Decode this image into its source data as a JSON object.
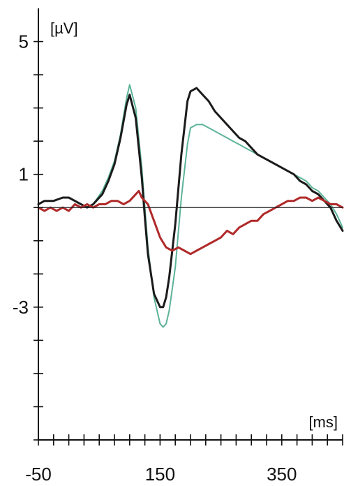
{
  "chart_data": {
    "type": "line",
    "xlabel": "[ms]",
    "ylabel": "[µV]",
    "xlim": [
      -50,
      450
    ],
    "ylim": [
      -7,
      6
    ],
    "x_tick_labels": [
      {
        "value": -50,
        "label": "-50"
      },
      {
        "value": 150,
        "label": "150"
      },
      {
        "value": 350,
        "label": "350"
      }
    ],
    "x_minor_ticks": [
      -50,
      -25,
      0,
      25,
      50,
      75,
      100,
      125,
      150,
      175,
      200,
      225,
      250,
      275,
      300,
      325,
      350,
      375,
      400,
      425,
      450
    ],
    "y_tick_labels": [
      {
        "value": 5,
        "label": "5"
      },
      {
        "value": 1,
        "label": "1"
      },
      {
        "value": -3,
        "label": "-3"
      }
    ],
    "y_minor_ticks": [
      -7,
      -6,
      -5,
      -4,
      -3,
      -2,
      -1,
      0,
      1,
      2,
      3,
      4,
      5
    ],
    "zero_line": 0,
    "series": [
      {
        "color": "#5db39a",
        "width": 2,
        "x": [
          -50,
          -40,
          -25,
          -10,
          0,
          10,
          20,
          30,
          40,
          55,
          65,
          75,
          85,
          95,
          100,
          110,
          120,
          125,
          130,
          140,
          150,
          155,
          160,
          165,
          175,
          185,
          195,
          200,
          210,
          220,
          230,
          240,
          250,
          260,
          270,
          280,
          290,
          300,
          310,
          320,
          330,
          340,
          350,
          360,
          370,
          380,
          390,
          400,
          410,
          420,
          430,
          440,
          450
        ],
        "y": [
          0.1,
          0.2,
          0.2,
          0.3,
          0.3,
          0.2,
          0.1,
          0.0,
          0.1,
          0.5,
          0.9,
          1.4,
          2.2,
          3.3,
          3.7,
          3.0,
          1.2,
          0.0,
          -1.2,
          -2.7,
          -3.5,
          -3.6,
          -3.5,
          -3.1,
          -1.8,
          0.3,
          1.9,
          2.4,
          2.5,
          2.5,
          2.4,
          2.3,
          2.2,
          2.1,
          2.0,
          1.9,
          1.8,
          1.7,
          1.6,
          1.5,
          1.4,
          1.3,
          1.2,
          1.1,
          1.0,
          0.9,
          0.8,
          0.6,
          0.5,
          0.3,
          0.1,
          -0.2,
          -0.6
        ]
      },
      {
        "color": "#1b1b1b",
        "width": 3,
        "x": [
          -50,
          -40,
          -25,
          -10,
          0,
          10,
          20,
          30,
          40,
          55,
          65,
          75,
          85,
          95,
          100,
          110,
          120,
          125,
          130,
          140,
          150,
          155,
          160,
          165,
          175,
          185,
          195,
          200,
          210,
          220,
          230,
          240,
          250,
          260,
          270,
          280,
          290,
          300,
          310,
          320,
          330,
          340,
          350,
          360,
          370,
          380,
          390,
          400,
          410,
          420,
          430,
          440,
          450
        ],
        "y": [
          0.1,
          0.2,
          0.2,
          0.3,
          0.3,
          0.2,
          0.1,
          0.0,
          0.1,
          0.4,
          0.8,
          1.3,
          2.1,
          3.1,
          3.4,
          2.7,
          0.9,
          -0.3,
          -1.4,
          -2.6,
          -3.0,
          -3.0,
          -2.7,
          -2.1,
          -0.5,
          1.6,
          3.2,
          3.5,
          3.6,
          3.4,
          3.2,
          2.9,
          2.7,
          2.5,
          2.3,
          2.1,
          2.0,
          1.8,
          1.6,
          1.5,
          1.4,
          1.3,
          1.2,
          1.1,
          1.0,
          0.8,
          0.7,
          0.5,
          0.4,
          0.2,
          0.0,
          -0.4,
          -0.7
        ]
      },
      {
        "color": "#b02a2a",
        "width": 3,
        "x": [
          -50,
          -40,
          -30,
          -20,
          -10,
          0,
          10,
          20,
          30,
          40,
          50,
          60,
          70,
          80,
          90,
          100,
          110,
          115,
          120,
          130,
          140,
          150,
          160,
          170,
          180,
          190,
          200,
          210,
          220,
          230,
          240,
          250,
          260,
          270,
          280,
          290,
          300,
          310,
          320,
          330,
          340,
          350,
          360,
          370,
          380,
          390,
          400,
          410,
          420,
          430,
          440,
          450
        ],
        "y": [
          0.0,
          -0.1,
          0.0,
          -0.1,
          0.0,
          -0.1,
          0.1,
          0.0,
          0.1,
          0.0,
          0.1,
          0.1,
          0.2,
          0.2,
          0.1,
          0.2,
          0.4,
          0.5,
          0.3,
          0.1,
          -0.4,
          -0.9,
          -1.2,
          -1.3,
          -1.2,
          -1.3,
          -1.4,
          -1.3,
          -1.2,
          -1.1,
          -1.0,
          -0.9,
          -0.7,
          -0.8,
          -0.6,
          -0.5,
          -0.4,
          -0.4,
          -0.2,
          -0.1,
          0.0,
          0.1,
          0.2,
          0.2,
          0.3,
          0.3,
          0.2,
          0.3,
          0.2,
          0.1,
          0.1,
          0.0
        ]
      }
    ]
  }
}
